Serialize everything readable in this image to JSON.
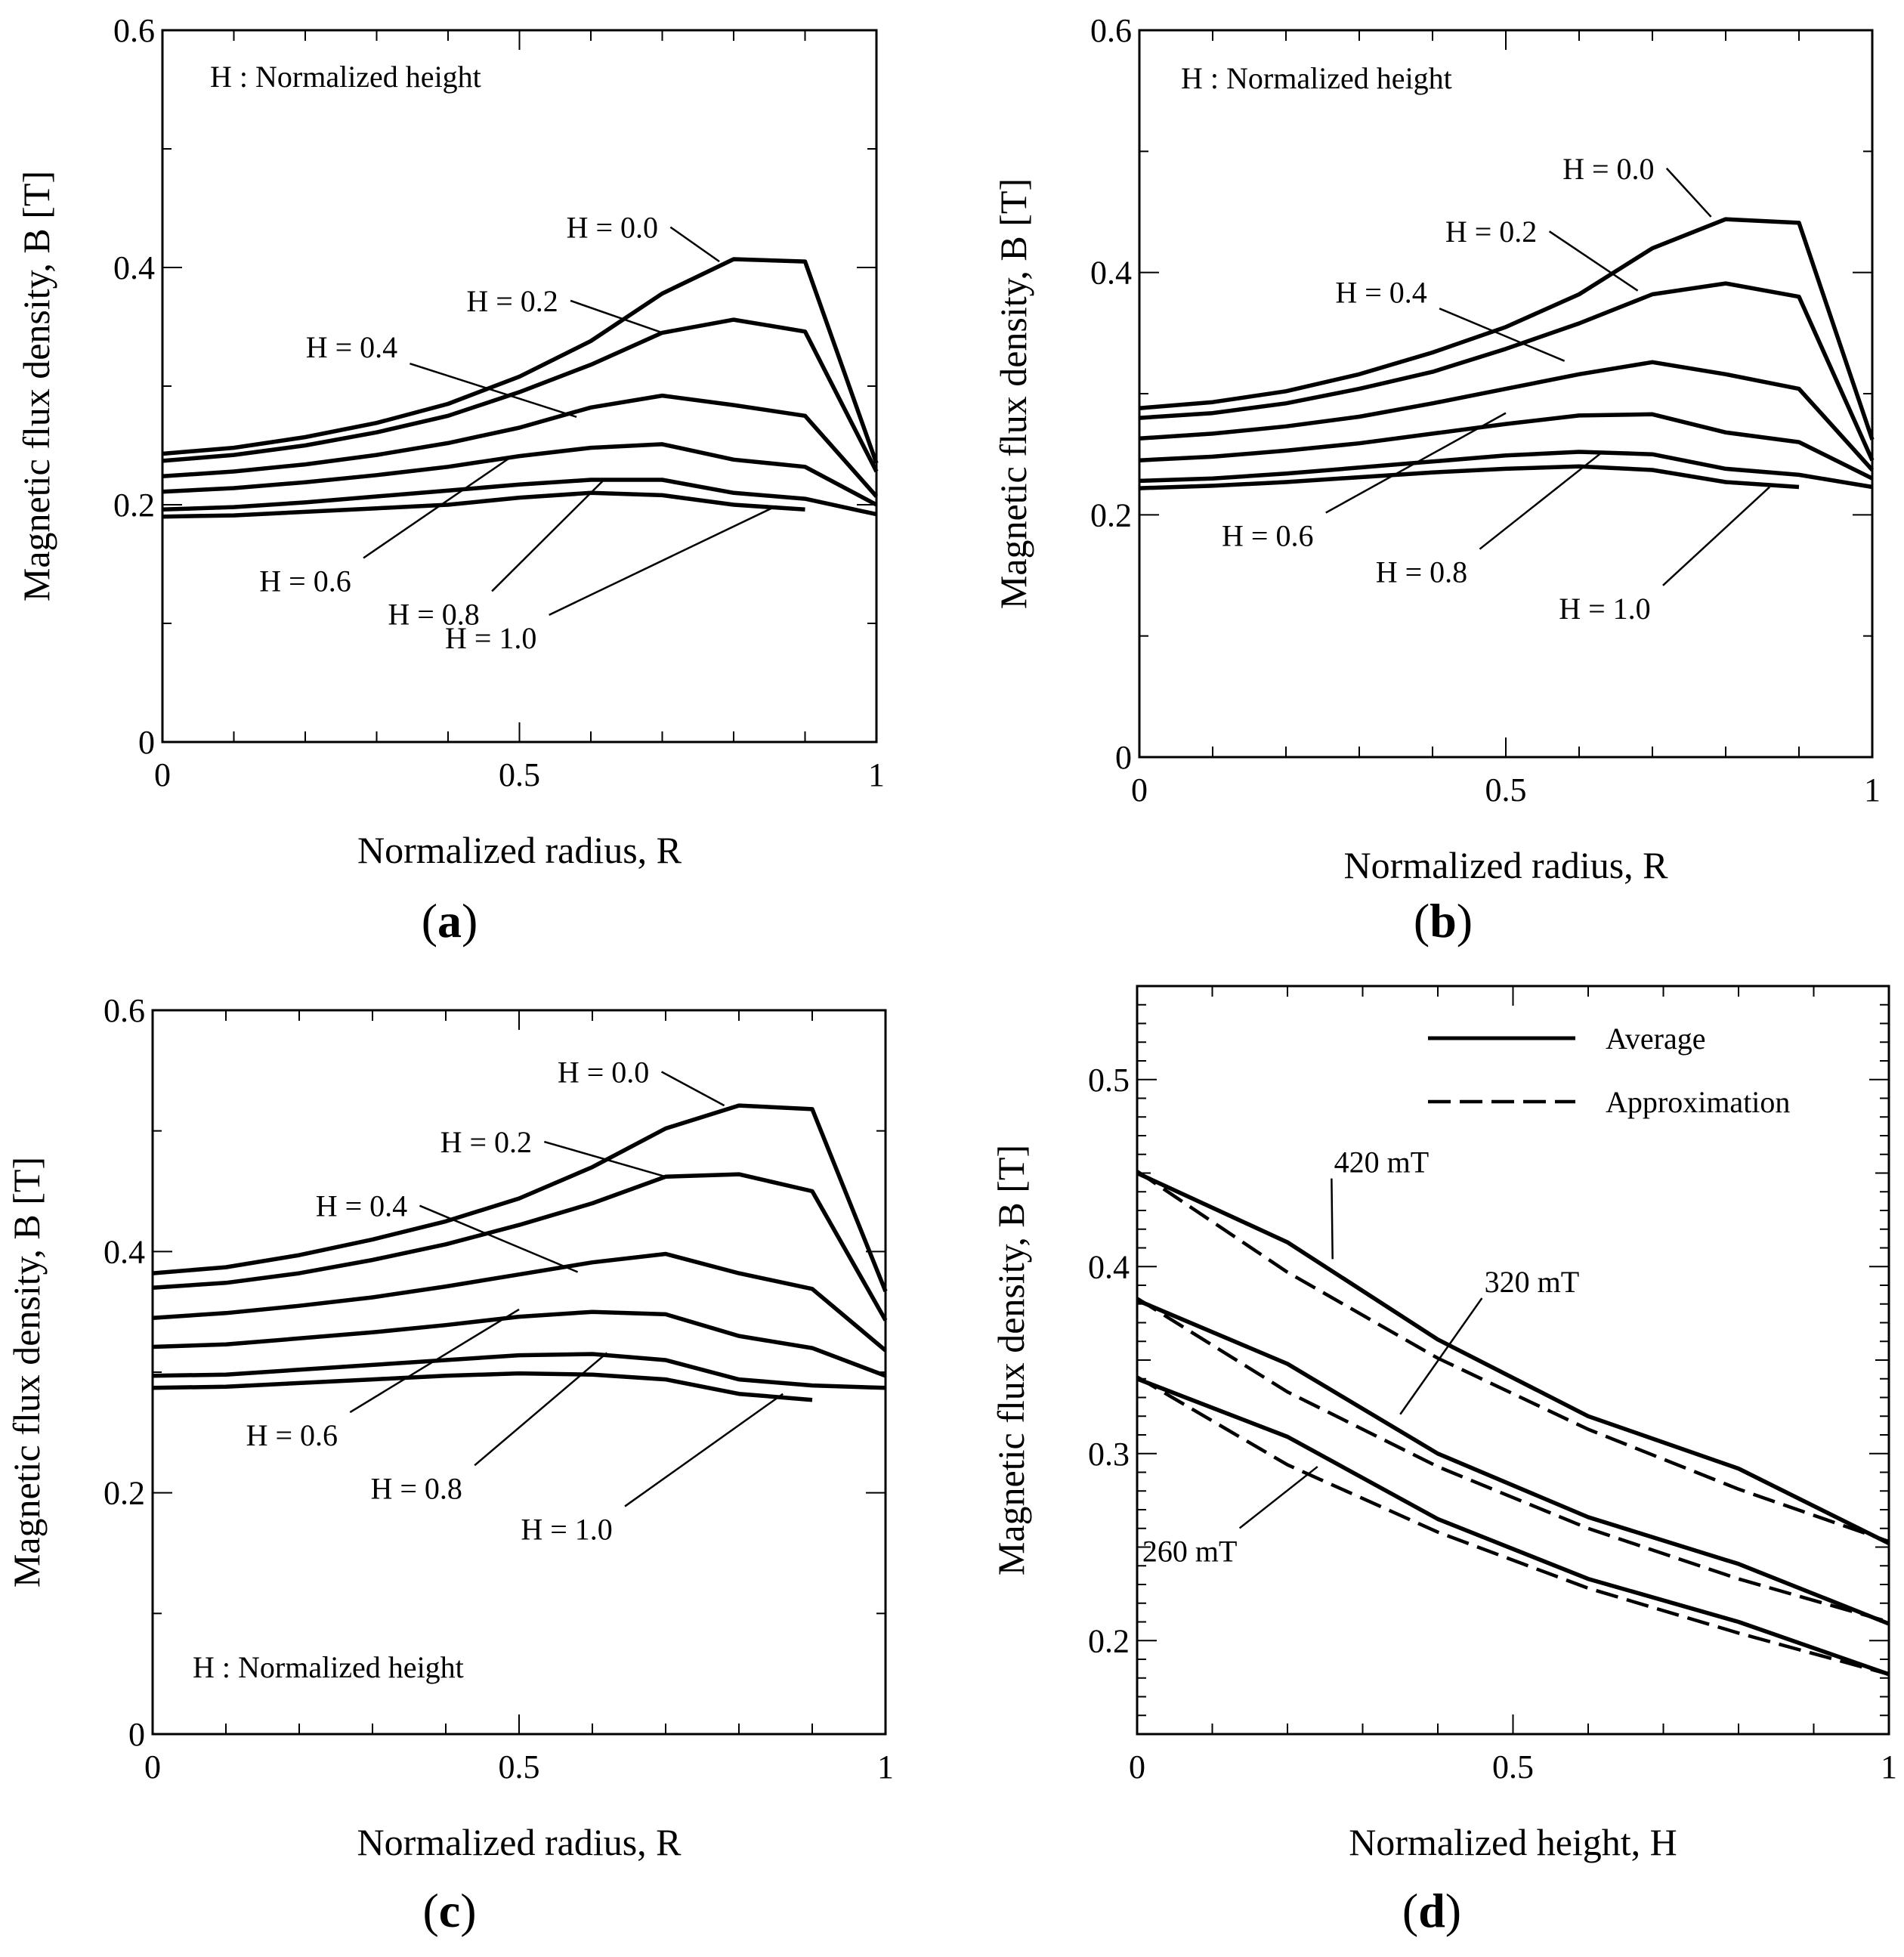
{
  "figure": {
    "captions": [
      "(a)",
      "(b)",
      "(c)",
      "(d)"
    ]
  },
  "chart_data": [
    {
      "panel": "a",
      "type": "line",
      "caption_letter": "a",
      "note": "H : Normalized height",
      "xlabel": "Normalized radius, R",
      "ylabel": "Magnetic flux density, B [T]",
      "xlim": [
        0,
        1
      ],
      "ylim": [
        0,
        0.6
      ],
      "xticks": [
        0,
        0.5,
        1
      ],
      "xtick_labels": [
        "0",
        "0.5",
        "1"
      ],
      "yticks": [
        0,
        0.2,
        0.4,
        0.6
      ],
      "ytick_labels": [
        "0",
        "0.2",
        "0.4",
        "0.6"
      ],
      "x": [
        0,
        0.1,
        0.2,
        0.3,
        0.4,
        0.5,
        0.6,
        0.7,
        0.8,
        0.9,
        1.0
      ],
      "series": [
        {
          "name": "H = 0.0",
          "values": [
            0.243,
            0.248,
            0.257,
            0.269,
            0.285,
            0.308,
            0.338,
            0.378,
            0.407,
            0.405,
            0.235
          ]
        },
        {
          "name": "H = 0.2",
          "values": [
            0.237,
            0.242,
            0.25,
            0.261,
            0.275,
            0.295,
            0.318,
            0.345,
            0.356,
            0.346,
            0.228
          ]
        },
        {
          "name": "H = 0.4",
          "values": [
            0.224,
            0.228,
            0.234,
            0.242,
            0.252,
            0.265,
            0.282,
            0.292,
            0.284,
            0.275,
            0.207
          ]
        },
        {
          "name": "H = 0.6",
          "values": [
            0.211,
            0.214,
            0.219,
            0.225,
            0.232,
            0.241,
            0.248,
            0.251,
            0.238,
            0.232,
            0.2
          ]
        },
        {
          "name": "H = 0.8",
          "values": [
            0.196,
            0.198,
            0.202,
            0.207,
            0.212,
            0.217,
            0.221,
            0.221,
            0.21,
            0.205,
            0.192
          ]
        },
        {
          "name": "H = 1.0",
          "values": [
            0.19,
            0.191,
            0.194,
            0.197,
            0.2,
            0.206,
            0.21,
            0.208,
            0.2,
            0.196,
            null
          ]
        }
      ],
      "annotations": [
        {
          "text": "H = 0.0",
          "tx": 0.63,
          "ty": 0.434,
          "px": 0.78,
          "py": 0.405
        },
        {
          "text": "H = 0.2",
          "tx": 0.49,
          "ty": 0.372,
          "px": 0.7,
          "py": 0.345
        },
        {
          "text": "H = 0.4",
          "tx": 0.265,
          "ty": 0.333,
          "px": 0.58,
          "py": 0.274
        },
        {
          "text": "H = 0.6",
          "tx": 0.2,
          "ty": 0.136,
          "px": 0.49,
          "py": 0.241
        },
        {
          "text": "H = 0.8",
          "tx": 0.38,
          "ty": 0.108,
          "px": 0.62,
          "py": 0.222
        },
        {
          "text": "H = 1.0",
          "tx": 0.46,
          "ty": 0.088,
          "px": 0.86,
          "py": 0.199
        }
      ]
    },
    {
      "panel": "b",
      "type": "line",
      "caption_letter": "b",
      "note": "H : Normalized height",
      "xlabel": "Normalized radius, R",
      "ylabel": "Magnetic flux density, B [T]",
      "xlim": [
        0,
        1
      ],
      "ylim": [
        0,
        0.6
      ],
      "xticks": [
        0,
        0.5,
        1
      ],
      "xtick_labels": [
        "0",
        "0.5",
        "1"
      ],
      "yticks": [
        0,
        0.2,
        0.4,
        0.6
      ],
      "ytick_labels": [
        "0",
        "0.2",
        "0.4",
        "0.6"
      ],
      "x": [
        0,
        0.1,
        0.2,
        0.3,
        0.4,
        0.5,
        0.6,
        0.7,
        0.8,
        0.9,
        1.0
      ],
      "series": [
        {
          "name": "H = 0.0",
          "values": [
            0.288,
            0.293,
            0.302,
            0.316,
            0.334,
            0.355,
            0.382,
            0.42,
            0.444,
            0.441,
            0.262
          ]
        },
        {
          "name": "H = 0.2",
          "values": [
            0.28,
            0.284,
            0.292,
            0.304,
            0.318,
            0.337,
            0.358,
            0.382,
            0.391,
            0.38,
            0.245
          ]
        },
        {
          "name": "H = 0.4",
          "values": [
            0.263,
            0.267,
            0.273,
            0.281,
            0.292,
            0.304,
            0.316,
            0.326,
            0.316,
            0.304,
            0.237
          ]
        },
        {
          "name": "H = 0.6",
          "values": [
            0.245,
            0.248,
            0.253,
            0.259,
            0.267,
            0.275,
            0.282,
            0.283,
            0.268,
            0.26,
            0.23
          ]
        },
        {
          "name": "H = 0.8",
          "values": [
            0.228,
            0.23,
            0.234,
            0.239,
            0.244,
            0.249,
            0.252,
            0.25,
            0.238,
            0.233,
            0.223
          ]
        },
        {
          "name": "H = 1.0",
          "values": [
            0.222,
            0.224,
            0.227,
            0.231,
            0.235,
            0.238,
            0.24,
            0.237,
            0.227,
            0.223,
            null
          ]
        }
      ],
      "annotations": [
        {
          "text": "H = 0.0",
          "tx": 0.64,
          "ty": 0.486,
          "px": 0.78,
          "py": 0.446
        },
        {
          "text": "H = 0.2",
          "tx": 0.48,
          "ty": 0.434,
          "px": 0.68,
          "py": 0.385
        },
        {
          "text": "H = 0.4",
          "tx": 0.33,
          "ty": 0.384,
          "px": 0.58,
          "py": 0.327
        },
        {
          "text": "H = 0.6",
          "tx": 0.175,
          "ty": 0.183,
          "px": 0.5,
          "py": 0.284
        },
        {
          "text": "H = 0.8",
          "tx": 0.385,
          "ty": 0.153,
          "px": 0.63,
          "py": 0.251
        },
        {
          "text": "H = 1.0",
          "tx": 0.635,
          "ty": 0.123,
          "px": 0.86,
          "py": 0.223
        }
      ]
    },
    {
      "panel": "c",
      "type": "line",
      "caption_letter": "c",
      "note": "H : Normalized height",
      "xlabel": "Normalized radius, R",
      "ylabel": "Magnetic flux density, B [T]",
      "xlim": [
        0,
        1
      ],
      "ylim": [
        0,
        0.6
      ],
      "xticks": [
        0,
        0.5,
        1
      ],
      "xtick_labels": [
        "0",
        "0.5",
        "1"
      ],
      "yticks": [
        0,
        0.2,
        0.4,
        0.6
      ],
      "ytick_labels": [
        "0",
        "0.2",
        "0.4",
        "0.6"
      ],
      "x": [
        0,
        0.1,
        0.2,
        0.3,
        0.4,
        0.5,
        0.6,
        0.7,
        0.8,
        0.9,
        1.0
      ],
      "series": [
        {
          "name": "H = 0.0",
          "values": [
            0.382,
            0.387,
            0.397,
            0.41,
            0.425,
            0.444,
            0.47,
            0.502,
            0.521,
            0.518,
            0.367
          ]
        },
        {
          "name": "H = 0.2",
          "values": [
            0.37,
            0.374,
            0.382,
            0.393,
            0.406,
            0.422,
            0.44,
            0.462,
            0.464,
            0.45,
            0.343
          ]
        },
        {
          "name": "H = 0.4",
          "values": [
            0.345,
            0.349,
            0.355,
            0.362,
            0.371,
            0.381,
            0.391,
            0.398,
            0.382,
            0.369,
            0.318
          ]
        },
        {
          "name": "H = 0.6",
          "values": [
            0.321,
            0.323,
            0.328,
            0.333,
            0.339,
            0.346,
            0.35,
            0.348,
            0.33,
            0.32,
            0.297
          ]
        },
        {
          "name": "H = 0.8",
          "values": [
            0.297,
            0.298,
            0.302,
            0.306,
            0.31,
            0.314,
            0.315,
            0.31,
            0.294,
            0.289,
            0.287
          ]
        },
        {
          "name": "H = 1.0",
          "values": [
            0.287,
            0.288,
            0.291,
            0.294,
            0.297,
            0.299,
            0.298,
            0.294,
            0.282,
            0.277,
            null
          ]
        }
      ],
      "annotations": [
        {
          "text": "H = 0.0",
          "tx": 0.615,
          "ty": 0.549,
          "px": 0.78,
          "py": 0.521
        },
        {
          "text": "H = 0.2",
          "tx": 0.455,
          "ty": 0.491,
          "px": 0.7,
          "py": 0.462
        },
        {
          "text": "H = 0.4",
          "tx": 0.285,
          "ty": 0.438,
          "px": 0.58,
          "py": 0.383
        },
        {
          "text": "H = 0.6",
          "tx": 0.19,
          "ty": 0.248,
          "px": 0.5,
          "py": 0.352
        },
        {
          "text": "H = 0.8",
          "tx": 0.36,
          "ty": 0.204,
          "px": 0.62,
          "py": 0.316
        },
        {
          "text": "H = 1.0",
          "tx": 0.565,
          "ty": 0.17,
          "px": 0.86,
          "py": 0.282
        }
      ]
    },
    {
      "panel": "d",
      "type": "line",
      "caption_letter": "d",
      "xlabel": "Normalized height, H",
      "ylabel": "Magnetic flux density, B [T]",
      "xlim": [
        0,
        1
      ],
      "ylim": [
        0.15,
        0.55
      ],
      "xticks": [
        0,
        0.5,
        1
      ],
      "xtick_labels": [
        "0",
        "0.5",
        "1"
      ],
      "yticks": [
        0.2,
        0.3,
        0.4,
        0.5
      ],
      "ytick_labels": [
        "0.2",
        "0.3",
        "0.4",
        "0.5"
      ],
      "legend": [
        {
          "label": "Average",
          "style": "solid"
        },
        {
          "label": "Approximation",
          "style": "dashed"
        }
      ],
      "x": [
        0,
        0.2,
        0.4,
        0.6,
        0.8,
        1.0
      ],
      "series": [
        {
          "name": "420 mT Average",
          "style": "solid",
          "values": [
            0.45,
            0.413,
            0.361,
            0.32,
            0.292,
            0.252
          ]
        },
        {
          "name": "420 mT Approximation",
          "style": "dashed",
          "values": [
            0.451,
            0.397,
            0.351,
            0.313,
            0.281,
            0.253
          ]
        },
        {
          "name": "320 mT Average",
          "style": "solid",
          "values": [
            0.382,
            0.348,
            0.3,
            0.266,
            0.241,
            0.209
          ]
        },
        {
          "name": "320 mT Approximation",
          "style": "dashed",
          "values": [
            0.383,
            0.333,
            0.293,
            0.26,
            0.233,
            0.21
          ]
        },
        {
          "name": "260 mT Average",
          "style": "solid",
          "values": [
            0.34,
            0.309,
            0.265,
            0.233,
            0.21,
            0.182
          ]
        },
        {
          "name": "260 mT Approximation",
          "style": "dashed",
          "values": [
            0.341,
            0.294,
            0.258,
            0.228,
            0.204,
            0.182
          ]
        }
      ],
      "annotations": [
        {
          "text": "420 mT",
          "tx": 0.325,
          "ty": 0.456,
          "px": 0.26,
          "py": 0.404
        },
        {
          "text": "320 mT",
          "tx": 0.525,
          "ty": 0.392,
          "px": 0.35,
          "py": 0.321
        },
        {
          "text": "260 mT",
          "tx": 0.07,
          "ty": 0.248,
          "px": 0.24,
          "py": 0.293
        }
      ]
    }
  ]
}
